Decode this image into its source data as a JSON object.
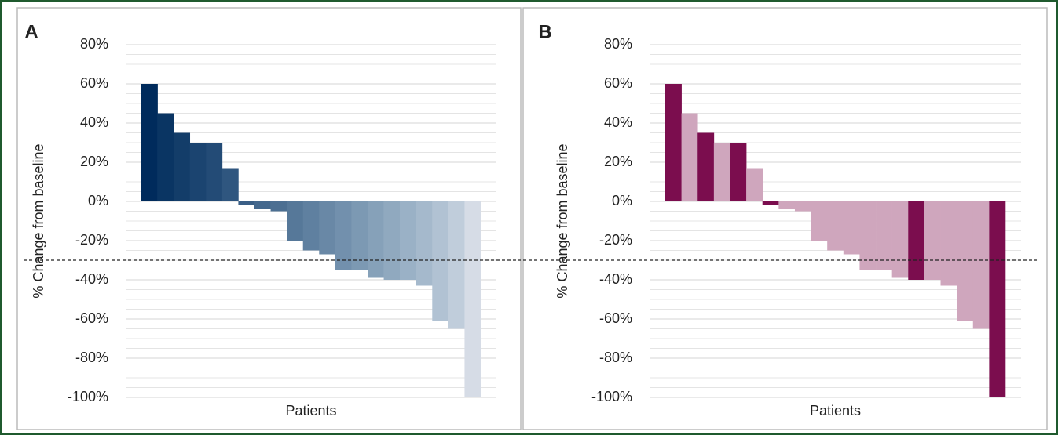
{
  "chart_data": [
    {
      "type": "bar",
      "panel_label": "A",
      "ylabel": "% Change from baseline",
      "xlabel": "Patients",
      "values": [
        60,
        45,
        35,
        30,
        30,
        17,
        -2,
        -4,
        -5,
        -20,
        -25,
        -27,
        -35,
        -35,
        -39,
        -40,
        -40,
        -43,
        -61,
        -65,
        -100
      ],
      "colors": [
        "#002b5c",
        "#0a3563",
        "#133d69",
        "#1b4470",
        "#234b76",
        "#2f567f",
        "#3a5f86",
        "#44688d",
        "#4c6f92",
        "#567899",
        "#5f80a0",
        "#6988a6",
        "#7290ad",
        "#7c99b3",
        "#86a1b9",
        "#90a9bf",
        "#9ab1c6",
        "#a5b9cc",
        "#b1c2d3",
        "#c0cddb",
        "#d6dce6"
      ],
      "ylim": [
        -100,
        80
      ],
      "yticks": [
        {
          "value": -100,
          "label": "-100%"
        },
        {
          "value": -80,
          "label": "-80%"
        },
        {
          "value": -60,
          "label": "-60%"
        },
        {
          "value": -40,
          "label": "-40%"
        },
        {
          "value": -20,
          "label": "-20%"
        },
        {
          "value": 0,
          "label": "0%"
        },
        {
          "value": 20,
          "label": "20%"
        },
        {
          "value": 40,
          "label": "40%"
        },
        {
          "value": 60,
          "label": "60%"
        },
        {
          "value": 80,
          "label": "80%"
        }
      ],
      "grid": true,
      "minor_grid": true,
      "reference_line": -30
    },
    {
      "type": "bar",
      "panel_label": "B",
      "ylabel": "% Change from baseline",
      "xlabel": "Patients",
      "values": [
        60,
        45,
        35,
        30,
        30,
        17,
        -2,
        -4,
        -5,
        -20,
        -25,
        -27,
        -35,
        -35,
        -39,
        -40,
        -40,
        -43,
        -61,
        -65,
        -100
      ],
      "colors": [
        "#7b0d4e",
        "#cfa6bd",
        "#7b0d4e",
        "#cfa6bd",
        "#7b0d4e",
        "#cfa6bd",
        "#7b0d4e",
        "#cfa6bd",
        "#cfa6bd",
        "#cfa6bd",
        "#cfa6bd",
        "#cfa6bd",
        "#cfa6bd",
        "#cfa6bd",
        "#cfa6bd",
        "#7b0d4e",
        "#cfa6bd",
        "#cfa6bd",
        "#cfa6bd",
        "#cfa6bd",
        "#7b0d4e"
      ],
      "ylim": [
        -100,
        80
      ],
      "yticks": [
        {
          "value": -100,
          "label": "-100%"
        },
        {
          "value": -80,
          "label": "-80%"
        },
        {
          "value": -60,
          "label": "-60%"
        },
        {
          "value": -40,
          "label": "-40%"
        },
        {
          "value": -20,
          "label": "-20%"
        },
        {
          "value": 0,
          "label": "0%"
        },
        {
          "value": 20,
          "label": "20%"
        },
        {
          "value": 40,
          "label": "40%"
        },
        {
          "value": 60,
          "label": "60%"
        },
        {
          "value": 80,
          "label": "80%"
        }
      ],
      "grid": true,
      "minor_grid": true,
      "reference_line": -30
    }
  ]
}
